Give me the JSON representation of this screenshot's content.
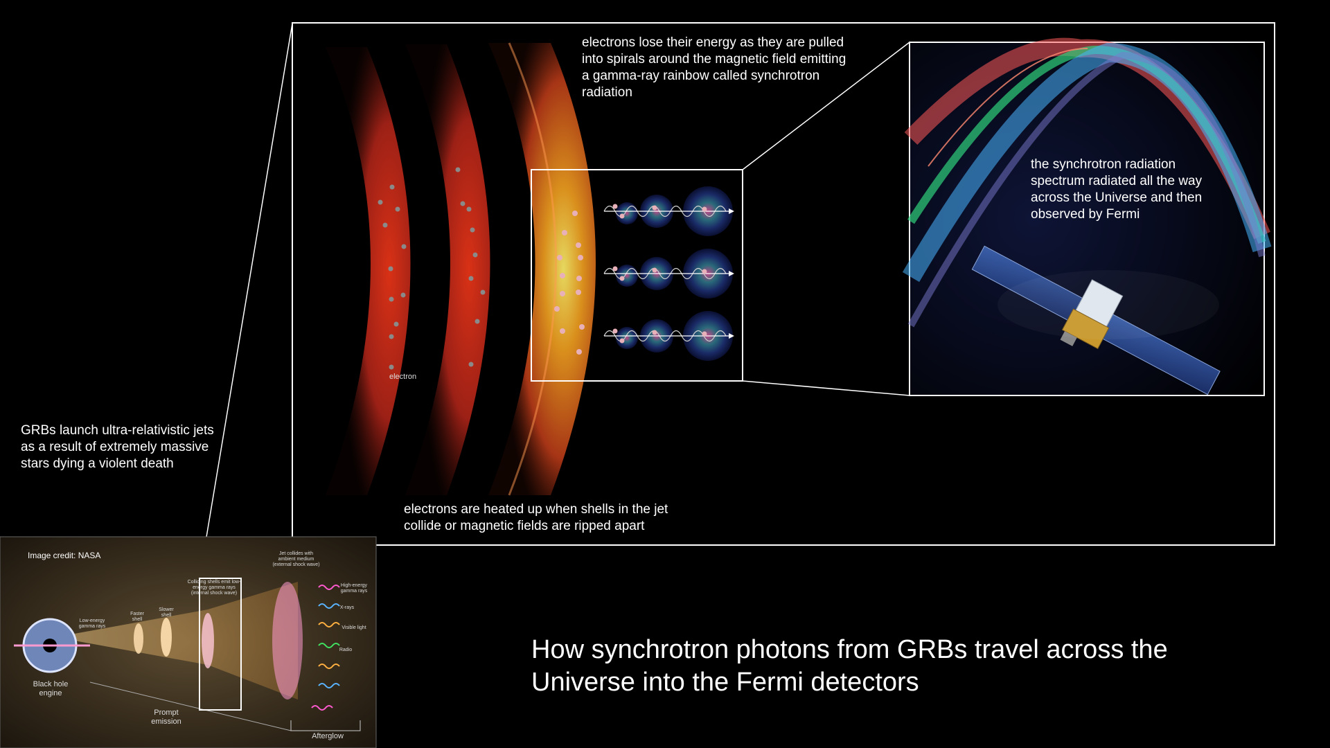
{
  "captions": {
    "grb_launch": "GRBs launch ultra-relativistic jets as a result of extremely massive stars dying a violent death",
    "electrons_heated": "electrons are heated up when shells in the jet collide or magnetic fields are ripped apart",
    "electrons_lose": "electrons lose their energy as they are pulled into spirals around the magnetic field emitting a gamma-ray rainbow called synchrotron radiation",
    "spectrum": "the synchrotron radiation spectrum radiated all the way across the Universe and then observed by Fermi",
    "title": "How synchrotron photons from GRBs travel across the Universe into the Fermi detectors"
  },
  "labels": {
    "electron": "electron"
  },
  "inset": {
    "credit": "Image credit: NASA",
    "black_hole_engine": "Black hole engine",
    "low_energy": "Low-energy gamma rays",
    "faster_shell": "Faster shell",
    "slower_shell": "Slower shell",
    "colliding_shells": "Colliding shells emit low-energy gamma rays (internal shock wave)",
    "jet_collides": "Jet collides with ambient medium (external shock wave)",
    "high_energy": "High-energy gamma rays",
    "xrays": "X-rays",
    "visible": "Visible light",
    "radio": "Radio",
    "prompt": "Prompt emission",
    "afterglow": "Afterglow"
  },
  "colors": {
    "background": "#000000",
    "frame": "#ffffff",
    "shell_red": "#e0311a",
    "shell_orange": "#f07a1c",
    "core_yellow": "#ffe24a",
    "spectrum_red": "#ff5a5a",
    "spectrum_green": "#3bdc8a",
    "spectrum_blue": "#4fa9ff"
  }
}
